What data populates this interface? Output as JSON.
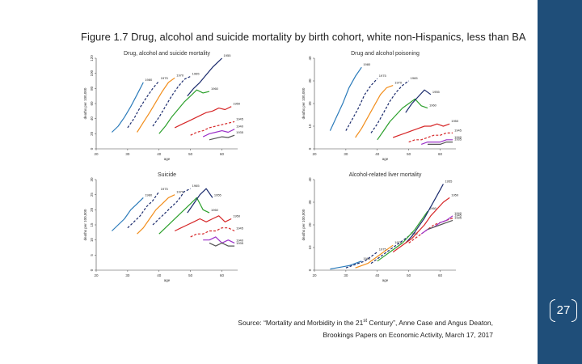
{
  "figure_title": "Figure 1.7 Drug, alcohol and suicide mortality by birth cohort, white non-Hispanics, less than BA",
  "source_line1_prefix": "Source: “Mortality and Morbidity in the 21",
  "source_line1_sup": "st",
  "source_line1_suffix": " Century”, Anne Case and Angus Deaton,",
  "source_line2": "Brookings Papers on Economic Activity, March 17, 2017",
  "page_number": "27",
  "colors": {
    "sidebar": "#1f4e79",
    "blue": "#2b7bba",
    "navy": "#1a2a6c",
    "orange": "#f28e1c",
    "green": "#2ca02c",
    "red": "#d62728",
    "purple": "#9b30c8",
    "gray": "#555555"
  },
  "chart_data": [
    {
      "type": "line",
      "title": "Drug, alcohol and suicide mortality",
      "xlabel": "age",
      "ylabel": "deaths per 100,000",
      "xlim": [
        20,
        65
      ],
      "ylim": [
        0,
        120
      ],
      "xticks": [
        "20",
        "30",
        "40",
        "50",
        "60"
      ],
      "yticks": [
        "0",
        "20",
        "40",
        "60",
        "80",
        "100",
        "120"
      ],
      "series": [
        {
          "name": "1980",
          "color": "blue",
          "dashed": false,
          "x": [
            25,
            27,
            29,
            31,
            33,
            35
          ],
          "y": [
            22,
            30,
            42,
            56,
            72,
            88
          ]
        },
        {
          "name": "1975",
          "color": "navy",
          "dashed": true,
          "x": [
            30,
            32,
            34,
            36,
            38,
            40
          ],
          "y": [
            28,
            40,
            55,
            68,
            80,
            90
          ]
        },
        {
          "name": "1970",
          "color": "orange",
          "dashed": false,
          "x": [
            33,
            35,
            37,
            39,
            41,
            43,
            45
          ],
          "y": [
            22,
            35,
            48,
            62,
            76,
            88,
            94
          ]
        },
        {
          "name": "1965",
          "color": "navy",
          "dashed": true,
          "x": [
            38,
            40,
            42,
            44,
            46,
            48,
            50
          ],
          "y": [
            30,
            42,
            56,
            70,
            82,
            92,
            96
          ]
        },
        {
          "name": "1960",
          "color": "green",
          "dashed": false,
          "x": [
            40,
            42,
            44,
            46,
            48,
            50,
            52,
            54,
            56
          ],
          "y": [
            20,
            30,
            42,
            52,
            62,
            70,
            78,
            74,
            76
          ]
        },
        {
          "name": "1955",
          "color": "navy",
          "dashed": false,
          "x": [
            49,
            51,
            53,
            55,
            57,
            59,
            60
          ],
          "y": [
            70,
            80,
            88,
            98,
            108,
            116,
            120
          ]
        },
        {
          "name": "1950",
          "color": "red",
          "dashed": false,
          "x": [
            45,
            47,
            49,
            51,
            53,
            55,
            57,
            59,
            61,
            63
          ],
          "y": [
            28,
            32,
            36,
            40,
            44,
            48,
            50,
            54,
            52,
            56
          ]
        },
        {
          "name": "1945",
          "color": "red",
          "dashed": true,
          "x": [
            50,
            52,
            54,
            56,
            58,
            60,
            62,
            64
          ],
          "y": [
            18,
            22,
            24,
            28,
            30,
            32,
            34,
            36
          ]
        },
        {
          "name": "1940",
          "color": "purple",
          "dashed": false,
          "x": [
            54,
            56,
            58,
            60,
            62,
            64
          ],
          "y": [
            16,
            20,
            22,
            24,
            22,
            26
          ]
        },
        {
          "name": "1935",
          "color": "gray",
          "dashed": false,
          "x": [
            56,
            58,
            60,
            62,
            64
          ],
          "y": [
            12,
            14,
            16,
            15,
            18
          ]
        }
      ],
      "labels": [
        "1980",
        "1975",
        "1970",
        "1965",
        "1960",
        "1955",
        "1950",
        "1945",
        "1940",
        "1935"
      ]
    },
    {
      "type": "line",
      "title": "Drug and alcohol poisoning",
      "xlabel": "age",
      "ylabel": "deaths per 100,000",
      "xlim": [
        20,
        65
      ],
      "ylim": [
        0,
        40
      ],
      "xticks": [
        "20",
        "30",
        "40",
        "50",
        "60"
      ],
      "yticks": [
        "0",
        "10",
        "20",
        "30",
        "40"
      ],
      "series": [
        {
          "name": "1980",
          "color": "blue",
          "dashed": false,
          "x": [
            25,
            27,
            29,
            31,
            33,
            35
          ],
          "y": [
            8,
            14,
            20,
            27,
            32,
            36
          ]
        },
        {
          "name": "1975",
          "color": "navy",
          "dashed": true,
          "x": [
            30,
            32,
            34,
            36,
            38,
            40
          ],
          "y": [
            8,
            13,
            18,
            24,
            28,
            31
          ]
        },
        {
          "name": "1970",
          "color": "orange",
          "dashed": false,
          "x": [
            33,
            35,
            37,
            39,
            41,
            43,
            45
          ],
          "y": [
            5,
            9,
            14,
            19,
            24,
            27,
            28
          ]
        },
        {
          "name": "1965",
          "color": "navy",
          "dashed": true,
          "x": [
            38,
            40,
            42,
            44,
            46,
            48,
            50
          ],
          "y": [
            7,
            11,
            16,
            21,
            25,
            28,
            30
          ]
        },
        {
          "name": "1960",
          "color": "green",
          "dashed": false,
          "x": [
            40,
            42,
            44,
            46,
            48,
            50,
            52,
            54,
            56
          ],
          "y": [
            4,
            8,
            12,
            15,
            18,
            20,
            22,
            19,
            18
          ]
        },
        {
          "name": "1955",
          "color": "navy",
          "dashed": false,
          "x": [
            49,
            51,
            53,
            55,
            57
          ],
          "y": [
            16,
            20,
            23,
            26,
            24
          ]
        },
        {
          "name": "1950",
          "color": "red",
          "dashed": false,
          "x": [
            45,
            47,
            49,
            51,
            53,
            55,
            57,
            59,
            61,
            63
          ],
          "y": [
            5,
            6,
            7,
            8,
            9,
            10,
            10,
            11,
            10,
            11
          ]
        },
        {
          "name": "1945",
          "color": "red",
          "dashed": true,
          "x": [
            50,
            52,
            54,
            56,
            58,
            60,
            62,
            64
          ],
          "y": [
            3,
            4,
            4,
            5,
            6,
            6,
            7,
            7
          ]
        },
        {
          "name": "1940",
          "color": "purple",
          "dashed": false,
          "x": [
            54,
            56,
            58,
            60,
            62,
            64
          ],
          "y": [
            2,
            3,
            3,
            3,
            4,
            4
          ]
        },
        {
          "name": "1935",
          "color": "gray",
          "dashed": false,
          "x": [
            56,
            58,
            60,
            62,
            64
          ],
          "y": [
            2,
            2,
            2,
            3,
            3
          ]
        }
      ],
      "labels": [
        "1980",
        "1975",
        "1970",
        "1965",
        "1960",
        "1955",
        "1950",
        "1945",
        "1940",
        "1935"
      ]
    },
    {
      "type": "line",
      "title": "Suicide",
      "xlabel": "age",
      "ylabel": "deaths per 100,000",
      "xlim": [
        20,
        65
      ],
      "ylim": [
        0,
        30
      ],
      "xticks": [
        "20",
        "30",
        "40",
        "50",
        "60"
      ],
      "yticks": [
        "0",
        "5",
        "10",
        "15",
        "20",
        "25",
        "30"
      ],
      "series": [
        {
          "name": "1980",
          "color": "blue",
          "dashed": false,
          "x": [
            25,
            27,
            29,
            31,
            33,
            35
          ],
          "y": [
            13,
            15,
            17,
            20,
            22,
            24
          ]
        },
        {
          "name": "1975",
          "color": "navy",
          "dashed": true,
          "x": [
            30,
            32,
            34,
            36,
            38,
            40
          ],
          "y": [
            14,
            16,
            18,
            21,
            23,
            26
          ]
        },
        {
          "name": "1970",
          "color": "orange",
          "dashed": false,
          "x": [
            33,
            35,
            37,
            39,
            41,
            43,
            45
          ],
          "y": [
            12,
            14,
            17,
            20,
            22,
            24,
            25
          ]
        },
        {
          "name": "1965",
          "color": "navy",
          "dashed": true,
          "x": [
            38,
            40,
            42,
            44,
            46,
            48,
            50
          ],
          "y": [
            15,
            17,
            19,
            21,
            23,
            26,
            27
          ]
        },
        {
          "name": "1960",
          "color": "green",
          "dashed": false,
          "x": [
            40,
            42,
            44,
            46,
            48,
            50,
            52,
            54,
            56
          ],
          "y": [
            12,
            14,
            16,
            18,
            20,
            22,
            24,
            20,
            19
          ]
        },
        {
          "name": "1955",
          "color": "navy",
          "dashed": false,
          "x": [
            49,
            51,
            53,
            55,
            57
          ],
          "y": [
            19,
            22,
            25,
            27,
            24
          ]
        },
        {
          "name": "1950",
          "color": "red",
          "dashed": false,
          "x": [
            45,
            47,
            49,
            51,
            53,
            55,
            57,
            59,
            61,
            63
          ],
          "y": [
            13,
            14,
            15,
            16,
            17,
            16,
            17,
            18,
            16,
            17
          ]
        },
        {
          "name": "1945",
          "color": "red",
          "dashed": true,
          "x": [
            50,
            52,
            54,
            56,
            58,
            60,
            62,
            64
          ],
          "y": [
            11,
            12,
            12,
            13,
            13,
            14,
            14,
            13
          ]
        },
        {
          "name": "1940",
          "color": "purple",
          "dashed": false,
          "x": [
            54,
            56,
            58,
            60,
            62,
            64
          ],
          "y": [
            10,
            10,
            11,
            9,
            10,
            9
          ]
        },
        {
          "name": "1935",
          "color": "gray",
          "dashed": false,
          "x": [
            56,
            58,
            60,
            62,
            64
          ],
          "y": [
            9,
            8,
            9,
            8,
            8
          ]
        }
      ],
      "labels": [
        "1980",
        "1975",
        "1970",
        "1965",
        "1960",
        "1955",
        "1950",
        "1945",
        "1940",
        "1935"
      ]
    },
    {
      "type": "line",
      "title": "Alcohol-related liver mortality",
      "xlabel": "age",
      "ylabel": "deaths per 100,000",
      "xlim": [
        20,
        65
      ],
      "ylim": [
        0,
        40
      ],
      "xticks": [
        "20",
        "30",
        "40",
        "50",
        "60"
      ],
      "yticks": [
        "0",
        "10",
        "20",
        "30",
        "40"
      ],
      "series": [
        {
          "name": "1980",
          "color": "blue",
          "dashed": false,
          "x": [
            25,
            27,
            29,
            31,
            33,
            35
          ],
          "y": [
            0.5,
            1,
            1.5,
            2,
            3,
            4
          ]
        },
        {
          "name": "1975",
          "color": "navy",
          "dashed": true,
          "x": [
            30,
            32,
            34,
            36,
            38,
            40
          ],
          "y": [
            1,
            2,
            3,
            4,
            6,
            8
          ]
        },
        {
          "name": "1970",
          "color": "orange",
          "dashed": false,
          "x": [
            33,
            35,
            37,
            39,
            41,
            43,
            45
          ],
          "y": [
            1,
            2,
            3,
            5,
            7,
            9,
            11
          ]
        },
        {
          "name": "1965",
          "color": "navy",
          "dashed": true,
          "x": [
            38,
            40,
            42,
            44,
            46,
            48,
            50
          ],
          "y": [
            3,
            5,
            7,
            9,
            11,
            13,
            15
          ]
        },
        {
          "name": "1960",
          "color": "green",
          "dashed": false,
          "x": [
            40,
            42,
            44,
            46,
            48,
            50,
            52,
            54,
            56
          ],
          "y": [
            4,
            6,
            8,
            10,
            12,
            15,
            18,
            22,
            26
          ]
        },
        {
          "name": "1955",
          "color": "navy",
          "dashed": false,
          "x": [
            49,
            51,
            53,
            55,
            57,
            59,
            61
          ],
          "y": [
            12,
            15,
            19,
            23,
            28,
            33,
            38
          ]
        },
        {
          "name": "1950",
          "color": "red",
          "dashed": false,
          "x": [
            45,
            47,
            49,
            51,
            53,
            55,
            57,
            59,
            61,
            63
          ],
          "y": [
            8,
            10,
            12,
            14,
            17,
            20,
            24,
            27,
            30,
            32
          ]
        },
        {
          "name": "1945",
          "color": "red",
          "dashed": true,
          "x": [
            50,
            52,
            54,
            56,
            58,
            60,
            62,
            64
          ],
          "y": [
            12,
            14,
            16,
            18,
            20,
            21,
            22,
            23
          ]
        },
        {
          "name": "1940",
          "color": "purple",
          "dashed": false,
          "x": [
            54,
            56,
            58,
            60,
            62,
            64
          ],
          "y": [
            16,
            18,
            19,
            21,
            22,
            24
          ]
        },
        {
          "name": "1935",
          "color": "gray",
          "dashed": false,
          "x": [
            56,
            58,
            60,
            62,
            64
          ],
          "y": [
            18,
            19,
            20,
            21,
            22
          ]
        }
      ],
      "labels": [
        "1980",
        "1975",
        "1970",
        "1965",
        "1960",
        "1955",
        "1950",
        "1945",
        "1940",
        "1935"
      ]
    }
  ]
}
